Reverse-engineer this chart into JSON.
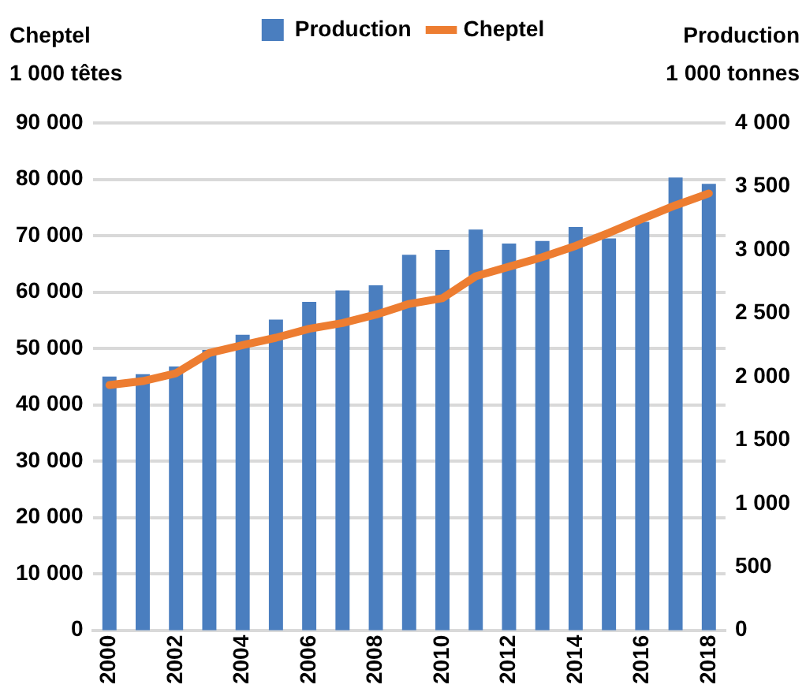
{
  "chart_data": {
    "type": "bar",
    "ylabel": "Cheptel\n1 000 têtes",
    "y2label": "Production\n1 000 tonnes",
    "categories": [
      "2000",
      null,
      "2002",
      null,
      "2004",
      null,
      "2006",
      null,
      "2008",
      null,
      "2010",
      null,
      "2012",
      null,
      "2014",
      null,
      "2016",
      null,
      "2018"
    ],
    "series": [
      {
        "name": "Production",
        "axis": "y2",
        "color": "#4a7ebf",
        "values": [
          2000,
          2020,
          2080,
          2210,
          2330,
          2450,
          2590,
          2680,
          2720,
          2960,
          3000,
          3160,
          3050,
          3070,
          3180,
          3090,
          3220,
          3570,
          3520
        ]
      },
      {
        "name": "Cheptel",
        "type": "line",
        "axis": "y",
        "color": "#ed7d31",
        "values": [
          43500,
          44200,
          45600,
          49200,
          50600,
          51900,
          53500,
          54500,
          56000,
          57900,
          58900,
          62800,
          64500,
          66200,
          68200,
          70500,
          73000,
          75400,
          77500
        ]
      }
    ],
    "ylim": [
      0,
      90000
    ],
    "yticks": [
      0,
      {
        "value": 10000,
        "label": "10 000"
      },
      {
        "value": 20000,
        "label": "20 000"
      },
      {
        "value": 30000,
        "label": "30 000"
      },
      {
        "value": 40000,
        "label": "40 000"
      },
      {
        "value": 50000,
        "label": "50 000"
      },
      {
        "value": 60000,
        "label": "60 000"
      },
      {
        "value": 70000,
        "label": "70 000"
      },
      {
        "value": 80000,
        "label": "80 000"
      },
      {
        "value": 90000,
        "label": "90 000"
      }
    ],
    "y2lim": [
      0,
      4000
    ],
    "y2ticks": [
      0,
      500,
      {
        "value": 1000,
        "label": "1 000"
      },
      {
        "value": 1500,
        "label": "1 500"
      },
      {
        "value": 2000,
        "label": "2 000"
      },
      {
        "value": 2500,
        "label": "2 500"
      },
      {
        "value": 3000,
        "label": "3 000"
      },
      {
        "value": 3500,
        "label": "3 500"
      },
      {
        "value": 4000,
        "label": "4 000"
      }
    ],
    "grid": "y",
    "legend": "top",
    "marker": "none",
    "line_style": "solid"
  }
}
